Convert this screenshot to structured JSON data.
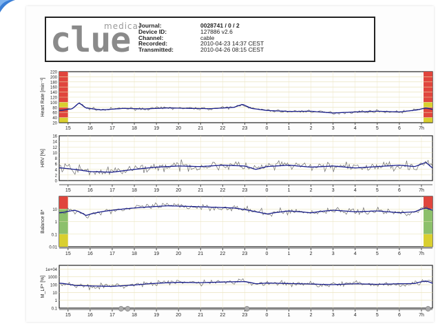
{
  "header": {
    "logo_main": "clue",
    "logo_sub": "medical",
    "fields": [
      {
        "label": "Journal:",
        "value": "0028741 / 0 / 2"
      },
      {
        "label": "Device ID:",
        "value": "127886 v2.6"
      },
      {
        "label": "Channel:",
        "value": "cable"
      },
      {
        "label": "Recorded:",
        "value": "2010-04-23 14:37 CEST"
      },
      {
        "label": "Transmitted:",
        "value": "2010-04-26 08:15 CEST"
      }
    ]
  },
  "x_ticks": [
    "15",
    "16",
    "17",
    "18",
    "19",
    "20",
    "21",
    "22",
    "23",
    "0",
    "1",
    "2",
    "3",
    "4",
    "5",
    "6",
    "7h"
  ],
  "colors": {
    "raw_line": "#6b6b6b",
    "trend_line": "#1a1f8c",
    "red_zone": "#e0453c",
    "yellow_zone": "#d9cf2f",
    "green_zone": "#8cc06b",
    "marker": "#aaaaaa"
  },
  "chart_data": [
    {
      "type": "line",
      "ylabel": "Heart Rate [min⁻¹]",
      "yticks": [
        "220",
        "200",
        "180",
        "160",
        "140",
        "120",
        "100",
        "80",
        "60",
        "40",
        "20"
      ],
      "ylim": [
        20,
        220
      ],
      "x_hours": [
        14.6,
        31.5
      ],
      "anchors": [
        [
          14.7,
          68
        ],
        [
          15.2,
          75
        ],
        [
          15.5,
          98
        ],
        [
          15.8,
          78
        ],
        [
          16.5,
          70
        ],
        [
          17.5,
          76
        ],
        [
          18.5,
          74
        ],
        [
          19.5,
          78
        ],
        [
          20.5,
          76
        ],
        [
          21.5,
          75
        ],
        [
          22.5,
          80
        ],
        [
          22.9,
          92
        ],
        [
          23.3,
          76
        ],
        [
          24.0,
          68
        ],
        [
          25.0,
          64
        ],
        [
          26.0,
          65
        ],
        [
          27.0,
          58
        ],
        [
          28.0,
          62
        ],
        [
          29.0,
          65
        ],
        [
          30.0,
          62
        ],
        [
          30.8,
          70
        ],
        [
          31.2,
          78
        ],
        [
          31.5,
          72
        ]
      ],
      "noise": 5,
      "zones": "hr",
      "grid": true,
      "legend": "none"
    },
    {
      "type": "line",
      "ylabel": "HRV [%]",
      "yticks": [
        "16",
        "14",
        "12",
        "10",
        "8",
        "6",
        "4",
        "2",
        "0"
      ],
      "ylim": [
        0,
        16
      ],
      "x_hours": [
        14.6,
        31.5
      ],
      "anchors": [
        [
          14.7,
          4.5
        ],
        [
          15.3,
          4.0
        ],
        [
          16.0,
          3.2
        ],
        [
          17.0,
          3.0
        ],
        [
          18.0,
          4.0
        ],
        [
          19.0,
          4.8
        ],
        [
          20.0,
          5.2
        ],
        [
          21.0,
          5.0
        ],
        [
          22.0,
          5.5
        ],
        [
          23.0,
          5.2
        ],
        [
          23.5,
          4.0
        ],
        [
          24.0,
          5.0
        ],
        [
          25.0,
          5.5
        ],
        [
          26.0,
          4.8
        ],
        [
          27.0,
          5.2
        ],
        [
          28.0,
          4.5
        ],
        [
          29.0,
          5.0
        ],
        [
          30.0,
          5.5
        ],
        [
          30.7,
          5.0
        ],
        [
          31.2,
          6.5
        ],
        [
          31.5,
          4.5
        ]
      ],
      "noise": 1.6,
      "zones": "none",
      "grid": true,
      "legend": "none"
    },
    {
      "type": "line",
      "ylabel": "Balance B*",
      "yticks": [
        "10",
        "1",
        "0.1",
        "0.01"
      ],
      "scale": "log",
      "ylim": [
        0.01,
        100
      ],
      "x_hours": [
        14.6,
        31.5
      ],
      "anchors": [
        [
          14.7,
          5
        ],
        [
          15.3,
          8
        ],
        [
          15.8,
          3
        ],
        [
          16.5,
          6
        ],
        [
          17.5,
          10
        ],
        [
          18.5,
          14
        ],
        [
          19.5,
          18
        ],
        [
          20.5,
          16
        ],
        [
          21.5,
          14
        ],
        [
          22.5,
          12
        ],
        [
          23.5,
          6
        ],
        [
          24.0,
          4
        ],
        [
          25.0,
          7
        ],
        [
          26.0,
          5
        ],
        [
          27.0,
          8
        ],
        [
          28.0,
          6
        ],
        [
          29.0,
          7
        ],
        [
          30.0,
          5
        ],
        [
          30.7,
          6
        ],
        [
          31.2,
          12
        ],
        [
          31.5,
          8
        ]
      ],
      "noise": 0.25,
      "zones": "balance",
      "grid": true,
      "legend": "none"
    },
    {
      "type": "line",
      "ylabel": "M_LF* [%]",
      "yticks": [
        "1e+04",
        "1000",
        "100",
        "10",
        "1",
        "0.1"
      ],
      "scale": "log",
      "ylim": [
        0.1,
        30000
      ],
      "x_hours": [
        14.6,
        31.5
      ],
      "anchors": [
        [
          14.7,
          150
        ],
        [
          15.3,
          80
        ],
        [
          16.0,
          70
        ],
        [
          17.0,
          60
        ],
        [
          18.0,
          90
        ],
        [
          19.0,
          150
        ],
        [
          20.0,
          200
        ],
        [
          21.0,
          180
        ],
        [
          22.0,
          220
        ],
        [
          23.0,
          250
        ],
        [
          23.5,
          130
        ],
        [
          24.0,
          160
        ],
        [
          25.0,
          140
        ],
        [
          26.0,
          120
        ],
        [
          27.0,
          100
        ],
        [
          28.0,
          130
        ],
        [
          29.0,
          110
        ],
        [
          30.0,
          130
        ],
        [
          30.7,
          140
        ],
        [
          31.2,
          300
        ],
        [
          31.5,
          150
        ]
      ],
      "noise": 0.35,
      "zones": "none",
      "markers_hours": [
        17.4,
        17.7,
        23.1,
        31.3
      ],
      "grid": true,
      "legend": "none"
    }
  ]
}
